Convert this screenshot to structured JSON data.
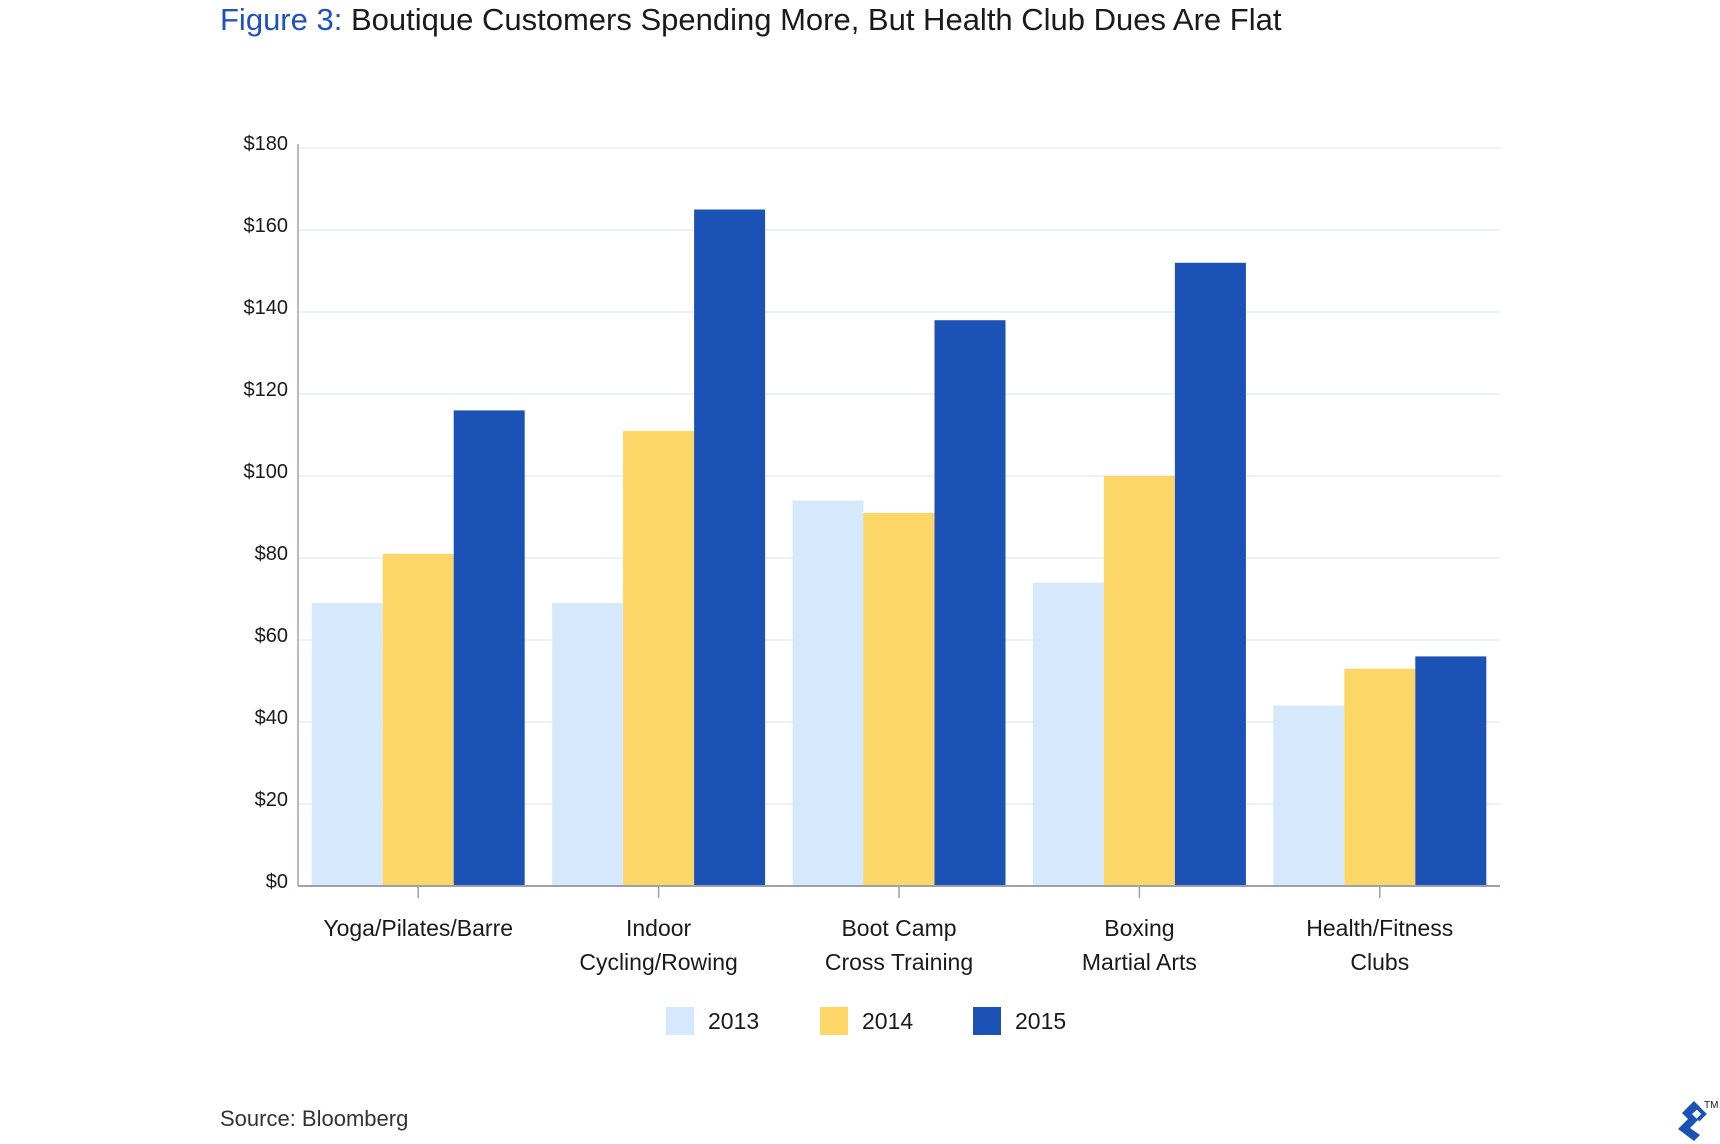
{
  "header": {
    "prefix": "Figure 3:",
    "title": "Boutique Customers Spending More, But Health Club Dues Are Flat"
  },
  "footer": {
    "source": "Source: Bloomberg",
    "logo_icon": "toptal-logo-icon",
    "trademark": "TM"
  },
  "chart_data": {
    "type": "bar",
    "categories": [
      [
        "Yoga/Pilates/Barre"
      ],
      [
        "Indoor",
        "Cycling/Rowing"
      ],
      [
        "Boot Camp",
        "Cross Training"
      ],
      [
        "Boxing",
        "Martial Arts"
      ],
      [
        "Health/Fitness",
        "Clubs"
      ]
    ],
    "series": [
      {
        "name": "2013",
        "color": "#d6e8fb",
        "values": [
          69,
          69,
          94,
          74,
          44
        ]
      },
      {
        "name": "2014",
        "color": "#fcd767",
        "values": [
          81,
          111,
          91,
          100,
          53
        ]
      },
      {
        "name": "2015",
        "color": "#1c52b5",
        "values": [
          116,
          165,
          138,
          152,
          56
        ]
      }
    ],
    "yticks": [
      "$0",
      "$20",
      "$40",
      "$60",
      "$80",
      "$100",
      "$120",
      "$140",
      "$160",
      "$180"
    ],
    "ylim": [
      0,
      180
    ],
    "ytick_step": 20,
    "grid": true,
    "legend_position": "bottom-center"
  }
}
